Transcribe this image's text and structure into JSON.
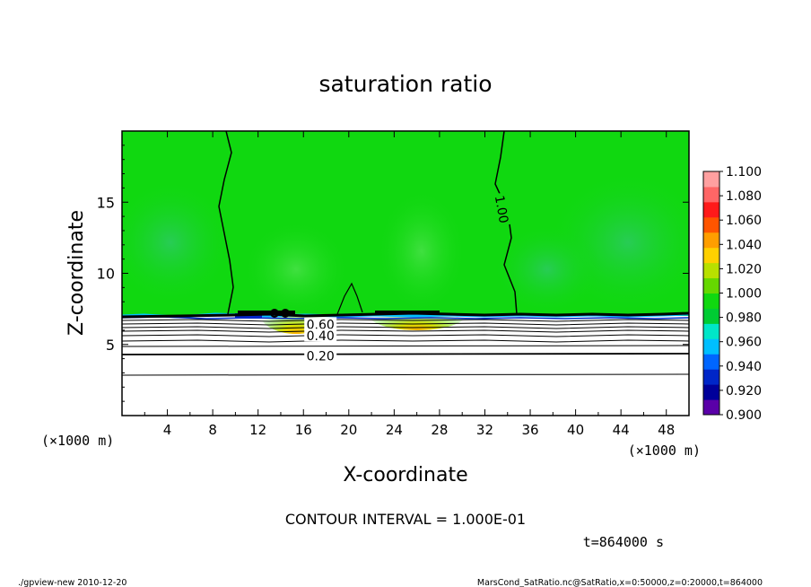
{
  "chart_data": {
    "type": "heatmap",
    "title": "saturation ratio",
    "xlabel": "X-coordinate",
    "ylabel": "Z-coordinate",
    "x_unit_left": "(×1000 m)",
    "x_unit_right": "(×1000 m)",
    "xlim": [
      0,
      50
    ],
    "ylim": [
      0,
      20
    ],
    "x_ticks": [
      4,
      8,
      12,
      16,
      20,
      24,
      28,
      32,
      36,
      40,
      44,
      48
    ],
    "y_ticks": [
      5,
      10,
      15
    ],
    "colorbar": {
      "levels": [
        0.9,
        0.92,
        0.94,
        0.96,
        0.98,
        1.0,
        1.02,
        1.04,
        1.06,
        1.08,
        1.1
      ],
      "labels": [
        "0.900",
        "0.920",
        "0.940",
        "0.960",
        "0.980",
        "1.000",
        "1.020",
        "1.040",
        "1.060",
        "1.080",
        "1.100"
      ],
      "colors": [
        "#5a00a8",
        "#00009a",
        "#0026c8",
        "#0066ff",
        "#00bfff",
        "#00e6c8",
        "#00cc33",
        "#10d810",
        "#66d800",
        "#b8e000",
        "#ffd000",
        "#ff9e00",
        "#ff5500",
        "#ff1a1a",
        "#ff6666",
        "#ffa0a0"
      ]
    },
    "contour_labels": [
      {
        "text": "1.00",
        "x": 33.5,
        "z": 14.5
      },
      {
        "text": "0.60",
        "x": 17.5,
        "z": 6.4
      },
      {
        "text": "0.40",
        "x": 17.5,
        "z": 5.6
      },
      {
        "text": "0.20",
        "x": 17.5,
        "z": 4.2
      }
    ],
    "contour_interval_text": "CONTOUR INTERVAL = 1.000E-01",
    "time_text": "t=864000 s"
  },
  "footer": {
    "left": "./gpview-new  2010-12-20",
    "right": "MarsCond_SatRatio.nc@SatRatio,x=0:50000,z=0:20000,t=864000"
  }
}
